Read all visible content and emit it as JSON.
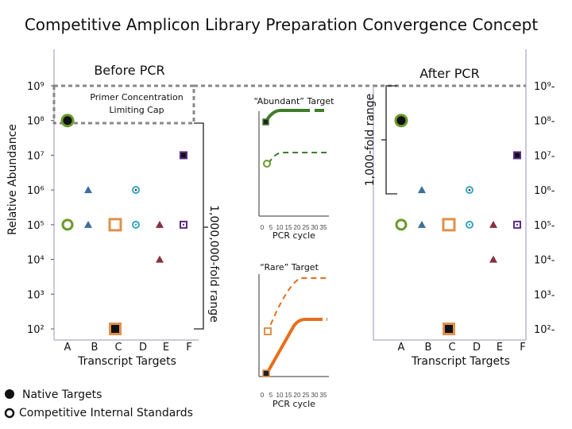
{
  "title": "Competitive Amplicon Library Preparation Convergence Concept",
  "y_axis_label": "Relative Abundance",
  "before": {
    "heading": "Before PCR",
    "cap_label_line1": "Primer Concentration",
    "cap_label_line2": "Limiting Cap",
    "range_label": "1,000,000-fold range"
  },
  "after": {
    "heading": "After PCR",
    "range_label": "1,000-fold range"
  },
  "ticks": [
    "10⁹",
    "10⁸",
    "10⁷",
    "10⁶",
    "10⁵",
    "10⁴",
    "10³",
    "10²"
  ],
  "ticks_right": [
    "10⁹-",
    "10⁸-",
    "10⁷-",
    "10⁶-",
    "10⁵-",
    "10⁴-",
    "10³-",
    "10²-"
  ],
  "categories": [
    "A",
    "B",
    "C",
    "D",
    "E",
    "F"
  ],
  "x_axis_label": "Transcript Targets",
  "insets": {
    "abundant_label": "“Abundant” Target",
    "rare_label": "“Rare” Target",
    "x_ticks": [
      "0",
      "5",
      "10",
      "15",
      "20",
      "25",
      "30",
      "35"
    ],
    "x_label": "PCR cycle"
  },
  "legend": {
    "native": "Native Targets",
    "competitive": "Competitive Internal Standards"
  },
  "colors": {
    "A": "#6a9a2c",
    "B": "#3d6e9e",
    "C": "#e0914a",
    "D": "#39a3c4",
    "E": "#8a2f3f",
    "F": "#5b2d8a",
    "abundant": "#3f7d2a",
    "rare": "#e86e1c"
  },
  "chart_data": {
    "type": "scatter",
    "categories": [
      "A",
      "B",
      "C",
      "D",
      "E",
      "F"
    ],
    "y_scale": "log",
    "ylim": [
      100,
      1000000000
    ],
    "before_pcr": {
      "native": [
        100000000,
        1000000,
        100,
        1000000,
        10000,
        10000000
      ],
      "competitive": [
        100000,
        100000,
        100000,
        100000,
        100000,
        100000
      ]
    },
    "after_pcr": {
      "native": [
        100000000,
        1000000,
        100,
        1000000,
        10000,
        10000000
      ],
      "competitive": [
        100000,
        100000,
        100000,
        100000,
        100000,
        100000
      ]
    }
  }
}
